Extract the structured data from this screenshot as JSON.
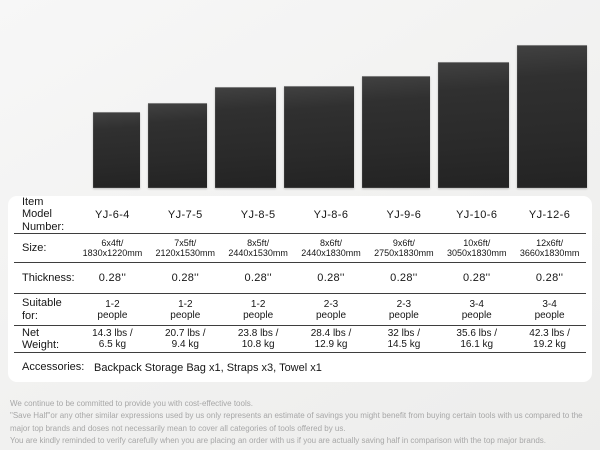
{
  "gallery": {
    "mat_count": 7,
    "mat_color": "#2b2b2b",
    "background_color": "#f1f1f0"
  },
  "table": {
    "rows": [
      {
        "label": "Item Model\nNumber:",
        "values": [
          "YJ-6-4",
          "YJ-7-5",
          "YJ-8-5",
          "YJ-8-6",
          "YJ-9-6",
          "YJ-10-6",
          "YJ-12-6"
        ]
      },
      {
        "label": "Size:",
        "values": [
          "6x4ft/\n1830x1220mm",
          "7x5ft/\n2120x1530mm",
          "8x5ft/\n2440x1530mm",
          "8x6ft/\n2440x1830mm",
          "9x6ft/\n2750x1830mm",
          "10x6ft/\n3050x1830mm",
          "12x6ft/\n3660x1830mm"
        ]
      },
      {
        "label": "Thickness:",
        "values": [
          "0.28''",
          "0.28''",
          "0.28''",
          "0.28''",
          "0.28''",
          "0.28''",
          "0.28''"
        ]
      },
      {
        "label": "Suitable for:",
        "values": [
          "1-2\npeople",
          "1-2\npeople",
          "1-2\npeople",
          "2-3\npeople",
          "2-3\npeople",
          "3-4\npeople",
          "3-4\npeople"
        ]
      },
      {
        "label": "Net Weight:",
        "values": [
          "14.3 lbs /\n6.5 kg",
          "20.7 lbs /\n9.4 kg",
          "23.8 lbs /\n10.8 kg",
          "28.4 lbs /\n12.9 kg",
          "32 lbs /\n14.5 kg",
          "35.6 lbs /\n16.1 kg",
          "42.3 lbs /\n19.2 kg"
        ]
      },
      {
        "label": "Accessories:",
        "value": "Backpack Storage Bag x1, Straps x3, Towel x1"
      }
    ]
  },
  "disclaimer": {
    "lines": [
      "We continue to be committed to provide you with cost-effective tools.",
      "\"Save Half\"or any other similar expressions used by us only represents an estimate of savings you might benefit from buying certain tools with us compared to the major top brands and doses not necessarily mean to cover all categories of tools offered by us.",
      "You are kindly reminded to verify carefully when you are placing an order with us if you are actually saving half in comparison with the top major brands."
    ]
  },
  "colors": {
    "card": "#ffffff",
    "table_line": "#3e3e3e",
    "table_text": "#161616",
    "disclaimer_text": "#a7a7a7"
  }
}
